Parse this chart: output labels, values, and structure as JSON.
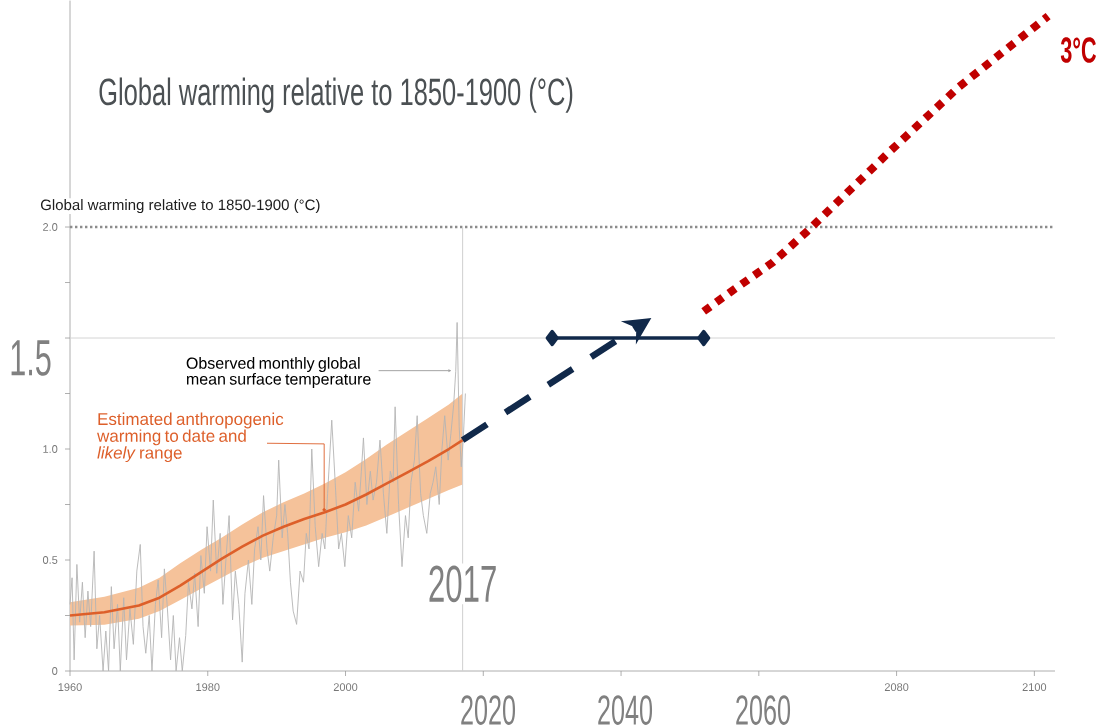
{
  "chart_data": {
    "type": "line",
    "title": "Global warming relative to 1850-1900 (°C)",
    "ylabel": "Global warming relative to 1850-1900 (°C)",
    "xlim": [
      1960,
      2103
    ],
    "ylim": [
      0,
      3.02
    ],
    "xticks": [
      1960,
      1980,
      2000,
      {
        "value": 2020,
        "label": null
      },
      {
        "value": 2040,
        "label": null
      },
      {
        "value": 2060,
        "label": null
      },
      2080,
      2100
    ],
    "yticks": [
      0,
      {
        "value": 0.25,
        "label": null
      },
      0.5,
      {
        "value": 0.75,
        "label": null
      },
      {
        "value": 1.0,
        "label": "1.0"
      },
      {
        "value": 1.25,
        "label": null
      },
      {
        "value": 1.5,
        "label": null
      },
      {
        "value": 1.75,
        "label": null
      },
      {
        "value": 2.0,
        "label": "2.0"
      }
    ],
    "series": [
      {
        "name": "Observed monthly global mean surface temperature",
        "color": "#b4b4b4",
        "x": [
          1960.0,
          1960.3,
          1960.6,
          1961.0,
          1961.4,
          1961.8,
          1962.2,
          1962.6,
          1963.0,
          1963.5,
          1963.9,
          1964.3,
          1964.8,
          1965.2,
          1965.6,
          1966.0,
          1966.4,
          1966.9,
          1967.3,
          1967.8,
          1968.2,
          1968.7,
          1969.2,
          1969.7,
          1970.2,
          1970.6,
          1971.0,
          1971.5,
          1971.9,
          1972.4,
          1972.8,
          1973.3,
          1973.7,
          1974.1,
          1974.6,
          1975.0,
          1975.4,
          1975.9,
          1976.3,
          1976.8,
          1977.2,
          1977.7,
          1978.1,
          1978.6,
          1979.0,
          1979.5,
          1979.9,
          1980.4,
          1980.8,
          1981.3,
          1981.8,
          1982.2,
          1982.7,
          1983.1,
          1983.6,
          1984.0,
          1984.5,
          1985.0,
          1985.4,
          1985.9,
          1986.4,
          1986.8,
          1987.3,
          1987.7,
          1988.1,
          1988.6,
          1989.0,
          1989.5,
          1990.0,
          1990.3,
          1990.8,
          1991.2,
          1991.6,
          1992.0,
          1992.4,
          1992.9,
          1993.4,
          1993.9,
          1994.3,
          1994.7,
          1995.1,
          1995.6,
          1996.1,
          1996.6,
          1997.0,
          1997.4,
          1998.0,
          1998.5,
          1999.0,
          1999.4,
          1999.9,
          2000.4,
          2000.9,
          2001.4,
          2001.9,
          2002.3,
          2002.6,
          2003.1,
          2003.6,
          2004.0,
          2004.5,
          2005.0,
          2005.5,
          2006.0,
          2006.5,
          2006.9,
          2007.2,
          2007.7,
          2008.2,
          2008.7,
          2009.1,
          2009.5,
          2010.0,
          2010.4,
          2010.9,
          2011.3,
          2011.8,
          2012.3,
          2012.7,
          2013.1,
          2013.6,
          2014.0,
          2014.4,
          2014.9,
          2015.3,
          2015.7,
          2016.0,
          2016.2,
          2016.5,
          2016.8,
          2017.1,
          2017.4
        ],
        "values": [
          0.3,
          0.42,
          0.05,
          0.48,
          0.22,
          0.4,
          0.15,
          0.36,
          0.2,
          0.54,
          0.1,
          0.25,
          0.0,
          0.18,
          0.0,
          0.38,
          0.1,
          0.3,
          0.0,
          0.33,
          0.05,
          0.28,
          0.12,
          0.45,
          0.57,
          0.2,
          0.08,
          0.25,
          0.0,
          0.3,
          0.41,
          0.15,
          0.46,
          0.3,
          0.05,
          0.25,
          0.0,
          0.15,
          0.0,
          0.16,
          0.4,
          0.28,
          0.44,
          0.2,
          0.52,
          0.35,
          0.65,
          0.45,
          0.77,
          0.44,
          0.62,
          0.3,
          0.53,
          0.7,
          0.23,
          0.45,
          0.3,
          0.04,
          0.35,
          0.5,
          0.3,
          0.55,
          0.65,
          0.5,
          0.79,
          0.55,
          0.45,
          0.6,
          0.7,
          0.95,
          0.6,
          0.75,
          0.62,
          0.4,
          0.27,
          0.21,
          0.45,
          0.4,
          0.62,
          0.55,
          1.0,
          0.65,
          0.47,
          0.62,
          0.55,
          0.8,
          1.13,
          0.85,
          0.55,
          0.62,
          0.47,
          0.7,
          0.6,
          0.85,
          0.72,
          0.9,
          1.05,
          0.75,
          0.9,
          0.77,
          0.85,
          1.04,
          0.8,
          0.62,
          0.9,
          0.85,
          1.19,
          0.75,
          0.47,
          0.7,
          0.6,
          0.85,
          0.95,
          1.15,
          0.8,
          0.7,
          0.62,
          0.8,
          0.85,
          0.92,
          0.75,
          1.0,
          1.15,
          0.95,
          1.07,
          1.2,
          1.35,
          1.57,
          1.1,
          0.92,
          1.05,
          1.25
        ]
      },
      {
        "name": "Estimated anthropogenic warming to date and *likely* range",
        "color": "#dd5f2a",
        "x": [
          1960,
          1965,
          1970,
          1973,
          1976,
          1979,
          1982,
          1985,
          1988,
          1991,
          1994,
          1997,
          2000,
          2003,
          2006,
          2009,
          2012,
          2015,
          2017
        ],
        "values": [
          0.25,
          0.265,
          0.295,
          0.33,
          0.385,
          0.445,
          0.505,
          0.56,
          0.61,
          0.65,
          0.685,
          0.715,
          0.75,
          0.795,
          0.845,
          0.895,
          0.945,
          1.0,
          1.04
        ],
        "lower": [
          0.205,
          0.208,
          0.235,
          0.27,
          0.32,
          0.37,
          0.42,
          0.47,
          0.51,
          0.54,
          0.57,
          0.6,
          0.625,
          0.655,
          0.695,
          0.735,
          0.775,
          0.815,
          0.84
        ],
        "upper": [
          0.31,
          0.335,
          0.375,
          0.42,
          0.485,
          0.545,
          0.6,
          0.66,
          0.715,
          0.76,
          0.8,
          0.845,
          0.895,
          0.955,
          1.02,
          1.08,
          1.14,
          1.2,
          1.25
        ]
      },
      {
        "color": "#11294a",
        "x": [
          2030,
          2052
        ],
        "values": [
          1.5,
          1.5
        ],
        "marker": "diamond"
      },
      {
        "color": "#c00000",
        "x": [
          2052,
          2056,
          2062,
          2067,
          2079,
          2089,
          2102
        ],
        "values": [
          1.62,
          1.71,
          1.84,
          1.98,
          2.34,
          2.63,
          2.95
        ],
        "line_style": "dotted"
      }
    ],
    "ref_lines": [
      {
        "axis": "y",
        "value": 2.0,
        "color": "#8c8c8c",
        "line_style": "dotted"
      },
      {
        "axis": "y",
        "value": 1.5,
        "color": "#d4d4d4"
      },
      {
        "axis": "x",
        "value": 2017,
        "label": "2017",
        "color": "#cfcfcf"
      }
    ],
    "annotations": [
      "1.5",
      "2020",
      "2040",
      "2060",
      {
        "text": "3°C",
        "x": 2102,
        "y": 2.95
      }
    ]
  }
}
